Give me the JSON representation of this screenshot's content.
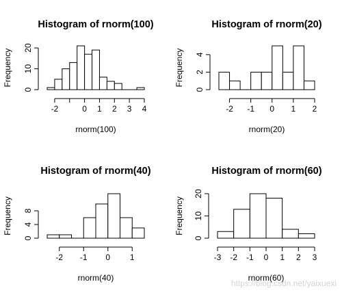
{
  "chart_data": [
    {
      "type": "bar",
      "title": "Histogram of rnorm(100)",
      "xlabel": "rnorm(100)",
      "ylabel": "Frequency",
      "breaks": [
        -2.5,
        -2,
        -1.5,
        -1,
        -0.5,
        0,
        0.5,
        1,
        1.5,
        2,
        2.5,
        3,
        3.5,
        4
      ],
      "values": [
        1,
        5,
        10,
        13,
        21,
        17,
        19,
        6,
        4,
        3,
        0,
        0,
        1
      ],
      "xticks": [
        -2,
        -1,
        0,
        1,
        2,
        3,
        4
      ],
      "xtick_labels": [
        "-2",
        "",
        "0",
        "1",
        "2",
        "3",
        "4"
      ],
      "yticks": [
        0,
        10,
        20
      ],
      "xlim": [
        -2.5,
        4
      ],
      "ylim": [
        0,
        21
      ]
    },
    {
      "type": "bar",
      "title": "Histogram of rnorm(20)",
      "xlabel": "rnorm(20)",
      "ylabel": "Frequency",
      "breaks": [
        -2.5,
        -2,
        -1.5,
        -1,
        -0.5,
        0,
        0.5,
        1,
        1.5,
        2
      ],
      "values": [
        2,
        1,
        0,
        2,
        2,
        5,
        2,
        5,
        1
      ],
      "xticks": [
        -2,
        -1,
        0,
        1,
        2
      ],
      "xtick_labels": [
        "-2",
        "-1",
        "0",
        "1",
        "2"
      ],
      "yticks": [
        0,
        2,
        4
      ],
      "xlim": [
        -2.5,
        2
      ],
      "ylim": [
        0,
        5
      ]
    },
    {
      "type": "bar",
      "title": "Histogram of rnorm(40)",
      "xlabel": "rnorm(40)",
      "ylabel": "Frequency",
      "breaks": [
        -2.5,
        -2,
        -1.5,
        -1,
        -0.5,
        0,
        0.5,
        1,
        1.5
      ],
      "values": [
        1,
        1,
        0,
        6,
        10,
        13,
        6,
        3
      ],
      "xticks": [
        -2,
        -1,
        0,
        1
      ],
      "xtick_labels": [
        "-2",
        "-1",
        "0",
        "1"
      ],
      "yticks": [
        0,
        4,
        8
      ],
      "xlim": [
        -2.5,
        1.5
      ],
      "ylim": [
        0,
        13
      ]
    },
    {
      "type": "bar",
      "title": "Histogram of rnorm(60)",
      "xlabel": "rnorm(60)",
      "ylabel": "Frequency",
      "breaks": [
        -3,
        -2,
        -1,
        0,
        1,
        2,
        3
      ],
      "values": [
        3,
        13,
        20,
        18,
        4,
        2
      ],
      "xticks": [
        -3,
        -2,
        -1,
        0,
        1,
        2,
        3
      ],
      "xtick_labels": [
        "-3",
        "-2",
        "-1",
        "0",
        "1",
        "2",
        "3"
      ],
      "yticks": [
        0,
        10,
        20
      ],
      "xlim": [
        -3,
        3
      ],
      "ylim": [
        0,
        20
      ]
    }
  ],
  "watermark": "https://blog.csdn.net/yaixuexi"
}
